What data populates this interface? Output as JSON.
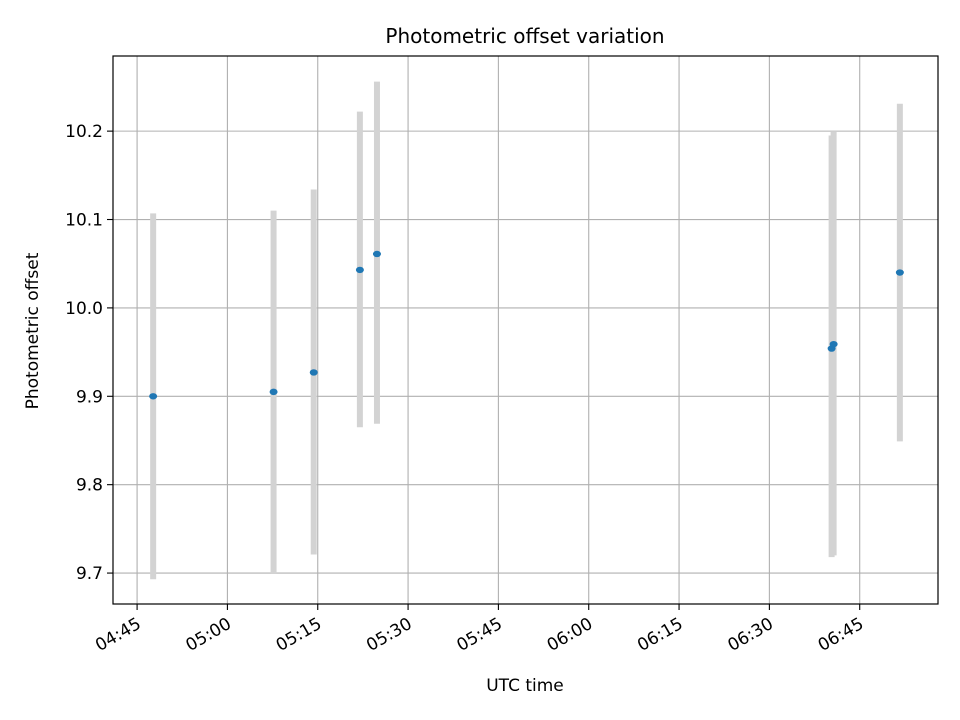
{
  "chart_data": {
    "type": "scatter",
    "title": "Photometric offset variation",
    "xlabel": "UTC time",
    "ylabel": "Photometric offset",
    "xlim": [
      "04:41",
      "06:58"
    ],
    "ylim": [
      9.665,
      10.285
    ],
    "x_ticks": [
      "04:45",
      "05:00",
      "05:15",
      "05:30",
      "05:45",
      "06:00",
      "06:15",
      "06:30",
      "06:45"
    ],
    "y_ticks": [
      "9.7",
      "9.8",
      "9.9",
      "10.0",
      "10.1",
      "10.2"
    ],
    "grid": true,
    "colors": {
      "point": "#1f77b4",
      "errorbar": "#d3d3d3",
      "grid": "#b0b0b0"
    },
    "points": [
      {
        "x": "04:47:40",
        "y": 9.9,
        "ylow": 9.693,
        "yhigh": 10.107
      },
      {
        "x": "05:07:40",
        "y": 9.905,
        "ylow": 9.7,
        "yhigh": 10.11
      },
      {
        "x": "05:14:20",
        "y": 9.927,
        "ylow": 9.721,
        "yhigh": 10.134
      },
      {
        "x": "05:22:00",
        "y": 10.043,
        "ylow": 9.865,
        "yhigh": 10.222
      },
      {
        "x": "05:24:50",
        "y": 10.061,
        "ylow": 9.869,
        "yhigh": 10.256
      },
      {
        "x": "06:40:20",
        "y": 9.954,
        "ylow": 9.718,
        "yhigh": 10.195
      },
      {
        "x": "06:40:40",
        "y": 9.959,
        "ylow": 9.72,
        "yhigh": 10.2
      },
      {
        "x": "06:51:40",
        "y": 10.04,
        "ylow": 9.849,
        "yhigh": 10.231
      }
    ]
  }
}
